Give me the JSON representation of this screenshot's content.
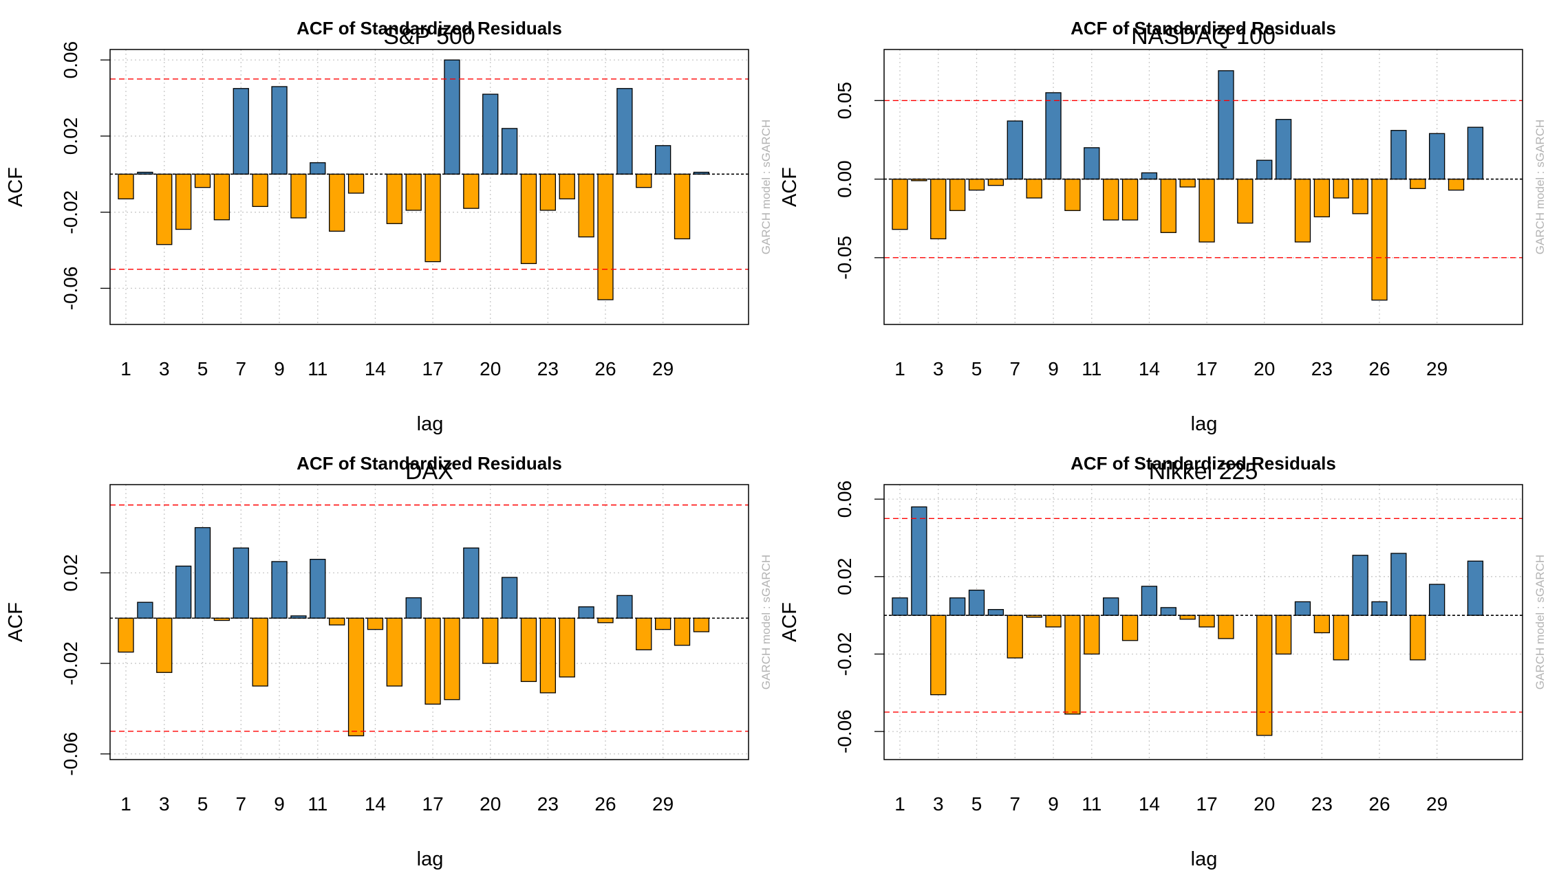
{
  "figure": {
    "colors": {
      "positive": "#4682B4",
      "negative": "#FFA500",
      "bound": "#FF0000",
      "zero": "#000000",
      "grid": "#C8C8C8",
      "side": "#B4B4B4"
    }
  },
  "chart_data": [
    {
      "type": "bar",
      "title": "ACF of Standardized Residuals",
      "subtitle": "S&P 500",
      "xlabel": "lag",
      "ylabel": "ACF",
      "side_label": "GARCH model :  sGARCH",
      "x_ticks": [
        "1",
        "3",
        "5",
        "7",
        "9",
        "11",
        "14",
        "17",
        "20",
        "23",
        "26",
        "29"
      ],
      "y_ticks": [
        "-0.06",
        "-0.02",
        "0.02",
        "0.06"
      ],
      "ylim": [
        -0.079,
        0.0655
      ],
      "y_tick_values": [
        -0.06,
        -0.02,
        0.02,
        0.06
      ],
      "bounds": [
        0.05,
        -0.05
      ],
      "grid": true,
      "lags": [
        1,
        2,
        3,
        4,
        5,
        6,
        7,
        8,
        9,
        10,
        11,
        12,
        13,
        14,
        15,
        16,
        17,
        18,
        19,
        20,
        21,
        22,
        23,
        24,
        25,
        26,
        27,
        28,
        29,
        30,
        31,
        32
      ],
      "values": [
        -0.013,
        0.001,
        -0.037,
        -0.029,
        -0.007,
        -0.024,
        0.045,
        -0.017,
        0.046,
        -0.023,
        0.006,
        -0.03,
        -0.01,
        0,
        -0.026,
        -0.019,
        -0.046,
        0.06,
        -0.018,
        0.042,
        0.024,
        -0.047,
        -0.019,
        -0.013,
        -0.033,
        -0.066,
        0.045,
        -0.007,
        0.015,
        -0.034,
        0.001,
        0
      ]
    },
    {
      "type": "bar",
      "title": "ACF of Standardized Residuals",
      "subtitle": "NASDAQ 100",
      "xlabel": "lag",
      "ylabel": "ACF",
      "side_label": "GARCH model :  sGARCH",
      "x_ticks": [
        "1",
        "3",
        "5",
        "7",
        "9",
        "11",
        "14",
        "17",
        "20",
        "23",
        "26",
        "29"
      ],
      "y_ticks": [
        "-0.05",
        "0.00",
        "0.05"
      ],
      "ylim": [
        -0.0925,
        0.0825
      ],
      "y_tick_values": [
        -0.05,
        0.0,
        0.05
      ],
      "bounds": [
        0.05,
        -0.05
      ],
      "grid": true,
      "lags": [
        1,
        2,
        3,
        4,
        5,
        6,
        7,
        8,
        9,
        10,
        11,
        12,
        13,
        14,
        15,
        16,
        17,
        18,
        19,
        20,
        21,
        22,
        23,
        24,
        25,
        26,
        27,
        28,
        29,
        30,
        31,
        32
      ],
      "values": [
        -0.032,
        -0.001,
        -0.038,
        -0.02,
        -0.007,
        -0.004,
        0.037,
        -0.012,
        0.055,
        -0.02,
        0.02,
        -0.026,
        -0.026,
        0.004,
        -0.034,
        -0.005,
        -0.04,
        0.069,
        -0.028,
        0.012,
        0.038,
        -0.04,
        -0.024,
        -0.012,
        -0.022,
        -0.077,
        0.031,
        -0.006,
        0.029,
        -0.007,
        0.033,
        0
      ]
    },
    {
      "type": "bar",
      "title": "ACF of Standardized Residuals",
      "subtitle": "DAX",
      "xlabel": "lag",
      "ylabel": "ACF",
      "side_label": "GARCH model :  sGARCH",
      "x_ticks": [
        "1",
        "3",
        "5",
        "7",
        "9",
        "11",
        "14",
        "17",
        "20",
        "23",
        "26",
        "29"
      ],
      "y_ticks": [
        "-0.06",
        "-0.02",
        "0.02"
      ],
      "ylim": [
        -0.0625,
        0.059
      ],
      "y_tick_values": [
        -0.06,
        -0.02,
        0.02
      ],
      "bounds": [
        0.05,
        -0.05
      ],
      "grid": true,
      "lags": [
        1,
        2,
        3,
        4,
        5,
        6,
        7,
        8,
        9,
        10,
        11,
        12,
        13,
        14,
        15,
        16,
        17,
        18,
        19,
        20,
        21,
        22,
        23,
        24,
        25,
        26,
        27,
        28,
        29,
        30,
        31,
        32
      ],
      "values": [
        -0.015,
        0.007,
        -0.024,
        0.023,
        0.04,
        -0.001,
        0.031,
        -0.03,
        0.025,
        0.001,
        0.026,
        -0.003,
        -0.052,
        -0.005,
        -0.03,
        0.009,
        -0.038,
        -0.036,
        0.031,
        -0.02,
        0.018,
        -0.028,
        -0.033,
        -0.026,
        0.005,
        -0.002,
        0.01,
        -0.014,
        -0.005,
        -0.012,
        -0.006,
        0
      ]
    },
    {
      "type": "bar",
      "title": "ACF of Standardized Residuals",
      "subtitle": "Nikkei 225",
      "xlabel": "lag",
      "ylabel": "ACF",
      "side_label": "GARCH model :  sGARCH",
      "x_ticks": [
        "1",
        "3",
        "5",
        "7",
        "9",
        "11",
        "14",
        "17",
        "20",
        "23",
        "26",
        "29"
      ],
      "y_ticks": [
        "-0.06",
        "-0.02",
        "0.02",
        "0.06"
      ],
      "ylim": [
        -0.0745,
        0.0675
      ],
      "y_tick_values": [
        -0.06,
        -0.02,
        0.02,
        0.06
      ],
      "bounds": [
        0.05,
        -0.05
      ],
      "grid": true,
      "lags": [
        1,
        2,
        3,
        4,
        5,
        6,
        7,
        8,
        9,
        10,
        11,
        12,
        13,
        14,
        15,
        16,
        17,
        18,
        19,
        20,
        21,
        22,
        23,
        24,
        25,
        26,
        27,
        28,
        29,
        30,
        31,
        32
      ],
      "values": [
        0.009,
        0.056,
        -0.041,
        0.009,
        0.013,
        0.003,
        -0.022,
        -0.001,
        -0.006,
        -0.051,
        -0.02,
        0.009,
        -0.013,
        0.015,
        0.004,
        -0.002,
        -0.006,
        -0.012,
        0,
        -0.062,
        -0.02,
        0.007,
        -0.009,
        -0.023,
        0.031,
        0.007,
        0.032,
        -0.023,
        0.016,
        0,
        0.028,
        0
      ]
    }
  ]
}
